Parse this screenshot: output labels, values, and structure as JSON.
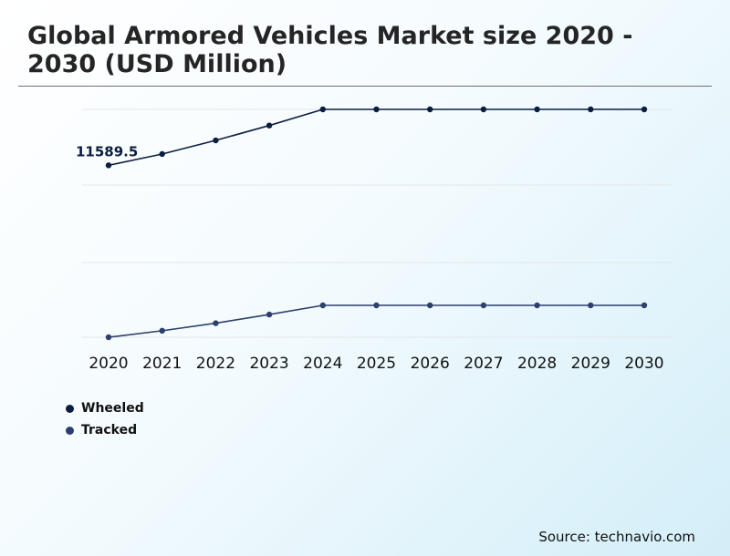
{
  "title": "Global Armored Vehicles Market size 2020 - 2030 (USD Million)",
  "source": "Source: technavio.com",
  "chart_data": [
    {
      "type": "line",
      "categories": [
        "2020",
        "2021",
        "2022",
        "2023",
        "2024",
        "2025",
        "2026",
        "2027",
        "2028",
        "2029",
        "2030"
      ],
      "grid": true,
      "series": [
        {
          "name": "Wheeled",
          "color": "#0b1e3f",
          "values": [
            11589.5,
            12500,
            13600,
            14800,
            16100,
            16100,
            16100,
            16100,
            16100,
            16100,
            16100
          ],
          "data_labels": [
            "11589.5",
            "",
            "",
            "",
            "",
            "",
            "",
            "",
            "",
            "",
            ""
          ]
        }
      ]
    },
    {
      "type": "line",
      "categories": [
        "2020",
        "2021",
        "2022",
        "2023",
        "2024",
        "2025",
        "2026",
        "2027",
        "2028",
        "2029",
        "2030"
      ],
      "grid": true,
      "series": [
        {
          "name": "Tracked",
          "color": "#2d3f6c",
          "values": [
            6600,
            7200,
            7900,
            8700,
            9550,
            9550,
            9550,
            9550,
            9550,
            9550,
            9550
          ]
        }
      ]
    }
  ]
}
